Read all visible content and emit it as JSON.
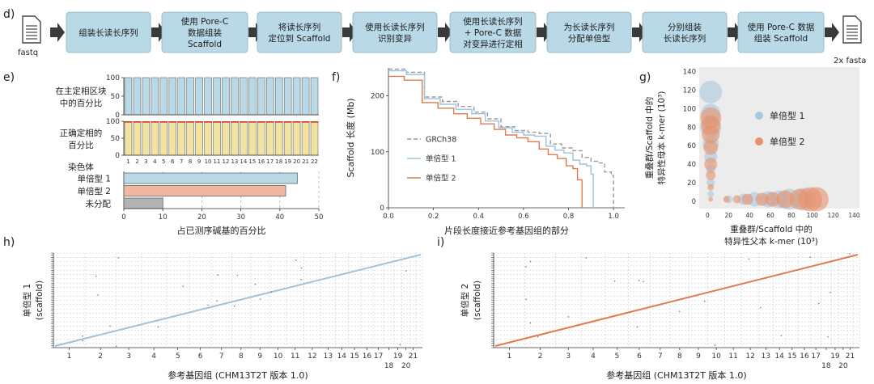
{
  "panels": {
    "d": "d)",
    "e": "e)",
    "f": "f)",
    "g": "g)",
    "h": "h)",
    "i": "i)"
  },
  "pipeline": {
    "input_label": "fastq",
    "output_label": "2x fasta",
    "steps": [
      [
        "组装长读长序列"
      ],
      [
        "使用 Pore-C",
        "数据组装",
        "Scaffold"
      ],
      [
        "将读长序列",
        "定位到 Scaffold"
      ],
      [
        "使用长读长序列",
        "识别变异"
      ],
      [
        "使用长读长序列",
        "+ Pore-C 数据",
        "对变异进行定相"
      ],
      [
        "为长读长序列",
        "分配单倍型"
      ],
      [
        "分别组装",
        "长读长序列"
      ],
      [
        "使用 Pore-C 数据",
        "组装 Scaffold"
      ]
    ],
    "colors": {
      "box": "#b9d9e6",
      "arrow": "#3a3a3a"
    }
  },
  "chart_data": [
    {
      "id": "e-top",
      "type": "bar",
      "ylabel_lines": [
        "在主定相区块",
        "中的百分比"
      ],
      "categories": [
        "1",
        "2",
        "3",
        "4",
        "5",
        "6",
        "7",
        "8",
        "9",
        "10",
        "11",
        "12",
        "13",
        "14",
        "15",
        "16",
        "17",
        "18",
        "19",
        "20",
        "21",
        "22"
      ],
      "values": [
        100,
        100,
        100,
        100,
        100,
        100,
        100,
        100,
        100,
        100,
        100,
        100,
        100,
        100,
        100,
        100,
        100,
        100,
        100,
        100,
        100,
        100
      ],
      "ylim": [
        0,
        100
      ],
      "yticks": [
        0,
        50,
        100
      ],
      "color": "#b9d9e6"
    },
    {
      "id": "e-mid",
      "type": "bar",
      "ylabel_lines": [
        "正确定相的",
        "百分比"
      ],
      "categories": [
        "1",
        "2",
        "3",
        "4",
        "5",
        "6",
        "7",
        "8",
        "9",
        "10",
        "11",
        "12",
        "13",
        "14",
        "15",
        "16",
        "17",
        "18",
        "19",
        "20",
        "21",
        "22"
      ],
      "values": [
        98,
        98,
        98,
        98,
        98,
        98,
        98,
        98,
        98,
        98,
        98,
        98,
        98,
        98,
        98,
        98,
        98,
        98,
        98,
        98,
        98,
        98
      ],
      "ylim": [
        0,
        100
      ],
      "yticks": [
        0,
        50,
        100
      ],
      "xlabel": "染色体",
      "color": "#f2e3a2",
      "marker_color": "#c0392b"
    },
    {
      "id": "e-bottom",
      "type": "bar",
      "orientation": "horizontal",
      "categories": [
        "单倍型 1",
        "单倍型 2",
        "未分配"
      ],
      "values": [
        44.5,
        41.5,
        10
      ],
      "colors": [
        "#b9d9e6",
        "#f0b8a0",
        "#b3b3b3"
      ],
      "xlim": [
        0,
        50
      ],
      "xticks": [
        0,
        10,
        20,
        30,
        40,
        50
      ],
      "xlabel": "占已测序碱基的百分比"
    },
    {
      "id": "f",
      "type": "line",
      "xlabel": "片段长度接近参考基因组的部分",
      "ylabel": "Scaffold 长度 (Mb)",
      "xlim": [
        0,
        1.05
      ],
      "ylim": [
        0,
        250
      ],
      "xticks": [
        0.0,
        0.2,
        0.4,
        0.6,
        0.8,
        1.0
      ],
      "yticks": [
        0,
        100,
        200
      ],
      "series": [
        {
          "name": "GRCh38",
          "color": "#9a9a9a",
          "dashed": true,
          "x": [
            0.0,
            0.08,
            0.08,
            0.16,
            0.16,
            0.24,
            0.24,
            0.31,
            0.31,
            0.38,
            0.38,
            0.44,
            0.44,
            0.5,
            0.5,
            0.56,
            0.56,
            0.62,
            0.62,
            0.67,
            0.67,
            0.72,
            0.72,
            0.77,
            0.77,
            0.82,
            0.82,
            0.86,
            0.86,
            0.9,
            0.9,
            0.93,
            0.93,
            0.96,
            0.96,
            0.99,
            0.99,
            1.0,
            1.0
          ],
          "y": [
            248,
            248,
            242,
            242,
            198,
            198,
            190,
            190,
            181,
            181,
            171,
            171,
            159,
            159,
            145,
            145,
            138,
            138,
            135,
            135,
            133,
            133,
            114,
            114,
            107,
            107,
            102,
            102,
            90,
            90,
            83,
            83,
            80,
            80,
            64,
            64,
            58,
            58,
            0
          ]
        },
        {
          "name": "单倍型 1",
          "color": "#9cc3dc",
          "dashed": false,
          "x": [
            0.0,
            0.08,
            0.08,
            0.16,
            0.16,
            0.23,
            0.23,
            0.3,
            0.3,
            0.37,
            0.37,
            0.43,
            0.43,
            0.49,
            0.49,
            0.55,
            0.55,
            0.6,
            0.6,
            0.65,
            0.65,
            0.7,
            0.7,
            0.74,
            0.74,
            0.78,
            0.78,
            0.82,
            0.82,
            0.85,
            0.85,
            0.88,
            0.88,
            0.9,
            0.9,
            0.91,
            0.91
          ],
          "y": [
            245,
            245,
            238,
            238,
            195,
            195,
            185,
            185,
            176,
            176,
            168,
            168,
            155,
            155,
            143,
            143,
            135,
            135,
            130,
            130,
            128,
            128,
            110,
            110,
            103,
            103,
            98,
            98,
            85,
            85,
            78,
            78,
            75,
            75,
            60,
            60,
            0
          ]
        },
        {
          "name": "单倍型 2",
          "color": "#e07a4f",
          "dashed": false,
          "x": [
            0.0,
            0.07,
            0.07,
            0.15,
            0.15,
            0.22,
            0.22,
            0.29,
            0.29,
            0.35,
            0.35,
            0.41,
            0.41,
            0.47,
            0.47,
            0.52,
            0.52,
            0.57,
            0.57,
            0.62,
            0.62,
            0.67,
            0.67,
            0.71,
            0.71,
            0.75,
            0.75,
            0.79,
            0.79,
            0.82,
            0.82,
            0.84,
            0.84,
            0.86,
            0.86
          ],
          "y": [
            235,
            235,
            228,
            228,
            188,
            188,
            178,
            178,
            168,
            168,
            160,
            160,
            150,
            150,
            140,
            140,
            130,
            130,
            125,
            125,
            118,
            118,
            105,
            105,
            95,
            95,
            88,
            88,
            75,
            75,
            70,
            70,
            50,
            50,
            0
          ]
        }
      ]
    },
    {
      "id": "g",
      "type": "scatter",
      "xlabel_lines": [
        "重叠群/Scaffold 中的",
        "特异性父本 k-mer (10³)"
      ],
      "ylabel_lines": [
        "重叠群/Scaffold 中的",
        "特异性母本 k-mer (10³)"
      ],
      "xlim": [
        -8,
        145
      ],
      "ylim": [
        -8,
        145
      ],
      "xticks": [
        0,
        20,
        40,
        60,
        80,
        100,
        120,
        140
      ],
      "yticks": [
        0,
        20,
        40,
        60,
        80,
        100,
        120,
        140
      ],
      "series": [
        {
          "name": "单倍型 1",
          "color": "#a8c8dc",
          "points": [
            [
              3,
              118,
              14
            ],
            [
              3,
              95,
              12
            ],
            [
              3,
              80,
              13
            ],
            [
              3,
              62,
              10
            ],
            [
              3,
              48,
              8
            ],
            [
              3,
              35,
              6
            ],
            [
              3,
              20,
              5
            ],
            [
              3,
              8,
              4
            ],
            [
              20,
              2,
              5
            ],
            [
              34,
              2,
              7
            ],
            [
              45,
              2,
              9
            ],
            [
              58,
              2,
              10
            ],
            [
              68,
              2,
              11
            ],
            [
              78,
              2,
              13
            ],
            [
              92,
              2,
              14
            ]
          ]
        },
        {
          "name": "单倍型 2",
          "color": "#e8916a",
          "points": [
            [
              3,
              90,
              13
            ],
            [
              3,
              82,
              12
            ],
            [
              3,
              72,
              11
            ],
            [
              3,
              58,
              9
            ],
            [
              3,
              40,
              8
            ],
            [
              3,
              28,
              6
            ],
            [
              3,
              15,
              4
            ],
            [
              3,
              2,
              3
            ],
            [
              18,
              2,
              4
            ],
            [
              28,
              2,
              5
            ],
            [
              38,
              2,
              7
            ],
            [
              52,
              2,
              8
            ],
            [
              62,
              2,
              9
            ],
            [
              74,
              2,
              11
            ],
            [
              88,
              2,
              13
            ],
            [
              98,
              2,
              15
            ],
            [
              104,
              2,
              15
            ]
          ]
        }
      ]
    },
    {
      "id": "h",
      "type": "scatter",
      "xlabel": "参考基因组 (CHM13T2T 版本 1.0)",
      "ylabel_lines": [
        "单倍型 1",
        "(scaffold)"
      ],
      "chromosome_labels": [
        "1",
        "2",
        "3",
        "4",
        "5",
        "6",
        "7",
        "8",
        "9",
        "10",
        "11",
        "12",
        "13",
        "14",
        "15",
        "16",
        "17",
        "18",
        "19",
        "20",
        "21"
      ],
      "color": "#9cc3dc"
    },
    {
      "id": "i",
      "type": "scatter",
      "xlabel": "参考基因组 (CHM13T2T 版本 1.0)",
      "ylabel_lines": [
        "单倍型 2",
        "(scaffold)"
      ],
      "chromosome_labels": [
        "1",
        "2",
        "3",
        "4",
        "5",
        "6",
        "7",
        "8",
        "9",
        "10",
        "11",
        "12",
        "13",
        "14",
        "15",
        "16",
        "17",
        "18",
        "19",
        "20",
        "21"
      ],
      "color": "#e07a4f"
    }
  ]
}
